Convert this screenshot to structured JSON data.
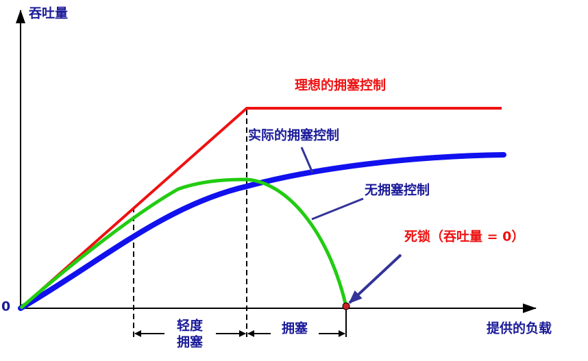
{
  "axes": {
    "y_label": "吞吐量",
    "origin": "0",
    "x_label": "提供的负载"
  },
  "curves": {
    "ideal": "理想的拥塞控制",
    "actual": "实际的拥塞控制",
    "none": "无拥塞控制",
    "deadlock": "死锁（吞吐量 = 0）"
  },
  "regions": {
    "light": [
      "轻度",
      "拥塞"
    ],
    "congestion": "拥塞"
  }
}
